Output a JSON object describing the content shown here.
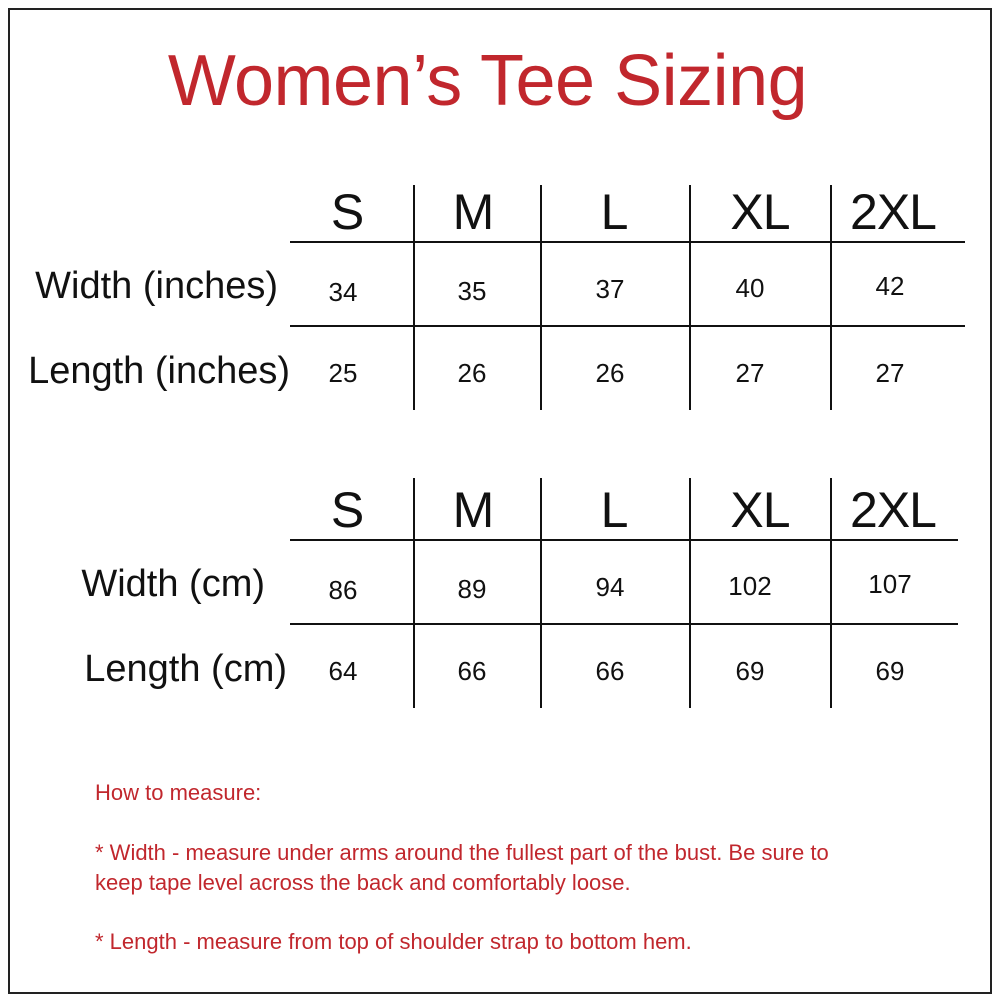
{
  "title": "Women’s Tee Sizing",
  "colors": {
    "accent": "#c1272d",
    "text": "#111111"
  },
  "tables": [
    {
      "sizes": [
        "S",
        "M",
        "L",
        "XL",
        "2XL"
      ],
      "rows": [
        {
          "label": "Width (inches)",
          "values": [
            "34",
            "35",
            "37",
            "40",
            "42"
          ]
        },
        {
          "label": "Length (inches)",
          "values": [
            "25",
            "26",
            "26",
            "27",
            "27"
          ]
        }
      ]
    },
    {
      "sizes": [
        "S",
        "M",
        "L",
        "XL",
        "2XL"
      ],
      "rows": [
        {
          "label": "Width (cm)",
          "values": [
            "86",
            "89",
            "94",
            "102",
            "107"
          ]
        },
        {
          "label": "Length (cm)",
          "values": [
            "64",
            "66",
            "66",
            "69",
            "69"
          ]
        }
      ]
    }
  ],
  "notes": {
    "heading": "How to measure:",
    "width_line1": "* Width - measure under arms around the fullest part of the bust. Be sure to",
    "width_line2": "keep tape level across the back and comfortably loose.",
    "length": "* Length - measure from top of shoulder strap to bottom hem."
  }
}
